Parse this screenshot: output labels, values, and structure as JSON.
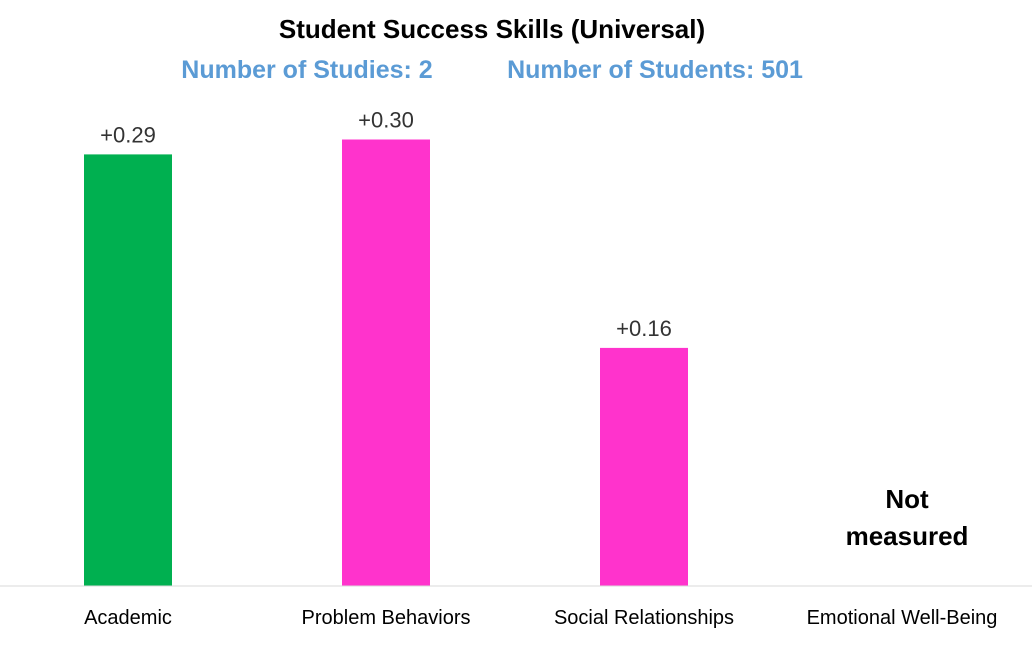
{
  "chart_data": {
    "type": "bar",
    "title": "Student Success Skills (Universal)",
    "subtitle_left": "Number of Studies: 2",
    "subtitle_right": "Number of Students: 501",
    "subtitle_color": "#5B9BD5",
    "categories": [
      "Academic",
      "Problem Behaviors",
      "Social Relationships",
      "Emotional Well-Being"
    ],
    "values": [
      0.29,
      0.3,
      0.16,
      null
    ],
    "value_labels": [
      "+0.29",
      "+0.30",
      "+0.16",
      ""
    ],
    "bar_colors": [
      "#00B050",
      "#FF33CC",
      "#FF33CC",
      ""
    ],
    "not_measured_label_line1": "Not",
    "not_measured_label_line2": "measured",
    "axis_line_color": "#D9D9D9",
    "ylim": [
      0,
      0.34
    ],
    "grid": false,
    "legend": "none"
  }
}
